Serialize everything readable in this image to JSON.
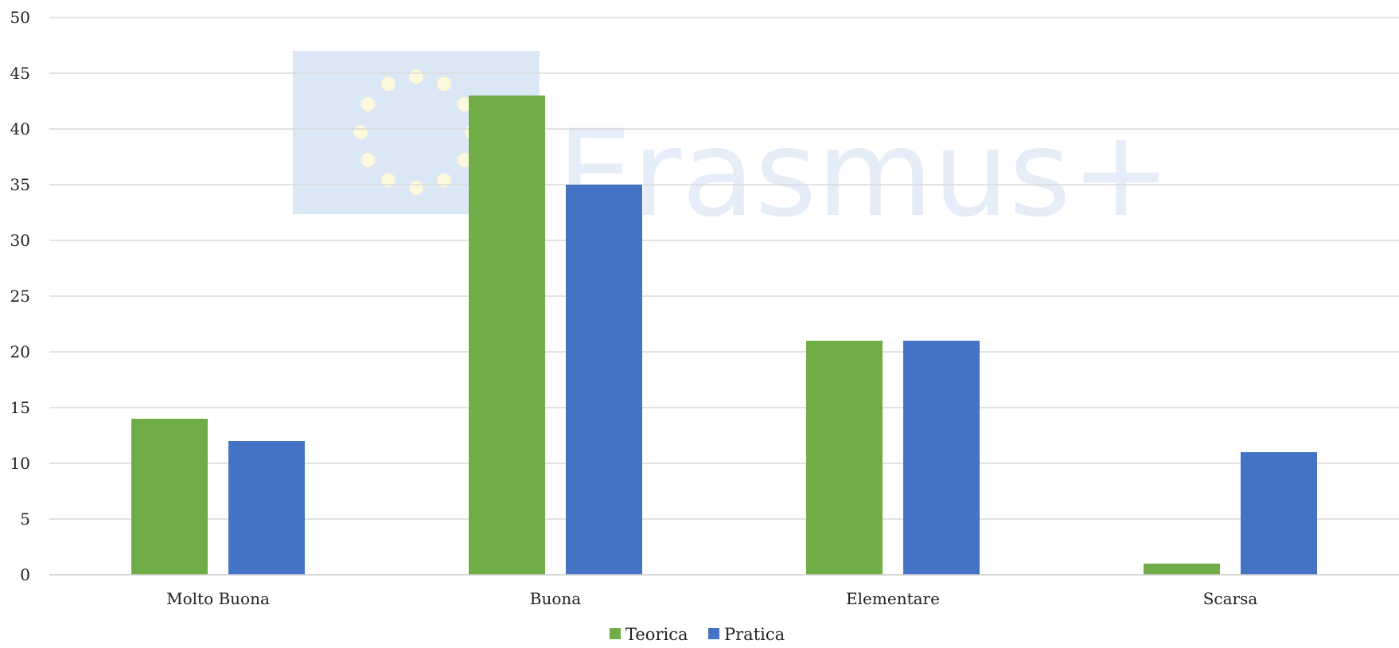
{
  "watermark": {
    "text": "Erasmus+",
    "flag_color": "#dce7f5",
    "star_color": "#fbf8dc",
    "text_color": "#e4edf8"
  },
  "chart_data": {
    "type": "bar",
    "categories": [
      "Molto Buona",
      "Buona",
      "Elementare",
      "Scarsa"
    ],
    "series": [
      {
        "name": "Teorica",
        "values": [
          14,
          43,
          21,
          1
        ],
        "color": "#70ad47"
      },
      {
        "name": "Pratica",
        "values": [
          12,
          35,
          21,
          11
        ],
        "color": "#4472c4"
      }
    ],
    "ylim": [
      0,
      50
    ],
    "yticks": [
      0,
      5,
      10,
      15,
      20,
      25,
      30,
      35,
      40,
      45,
      50
    ],
    "grid": true,
    "legend": "bottom-center",
    "title": "",
    "xlabel": "",
    "ylabel": ""
  }
}
